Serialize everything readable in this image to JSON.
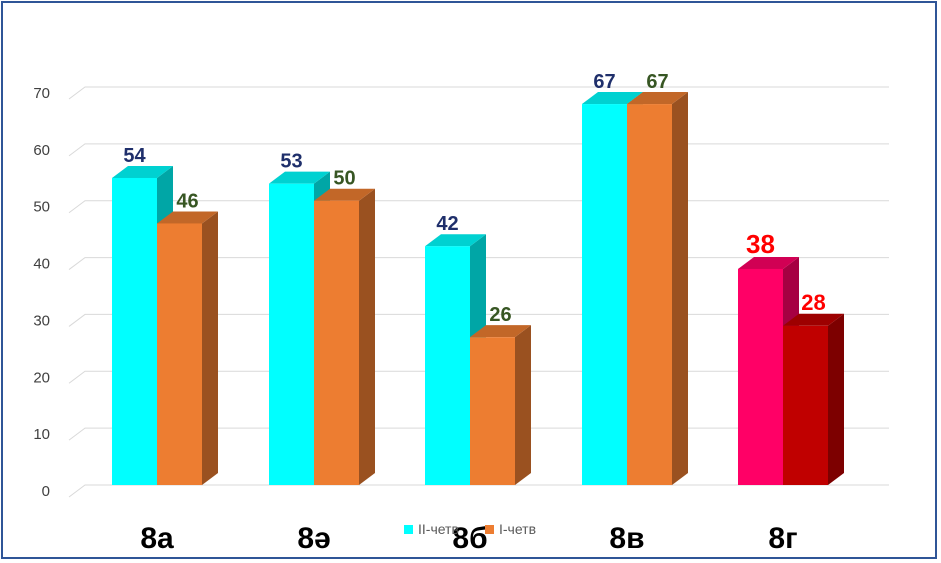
{
  "chart_data": {
    "type": "bar",
    "title": "",
    "xlabel": "",
    "ylabel": "",
    "categories": [
      "8а",
      "8ә",
      "8б",
      "8в",
      "8г"
    ],
    "ylim": [
      0,
      70
    ],
    "yticks": [
      0,
      10,
      20,
      30,
      40,
      50,
      60,
      70
    ],
    "series": [
      {
        "name": "II-четв",
        "values": [
          54,
          53,
          42,
          67,
          38
        ],
        "color": "#00ffff",
        "label_color": "#1f2f6b",
        "point_colors": {
          "4": "#ff0066"
        },
        "point_label_colors": {
          "4": "#ff0000"
        }
      },
      {
        "name": "I-четв",
        "values": [
          46,
          50,
          26,
          67,
          28
        ],
        "color": "#ed7d31",
        "label_color": "#375623",
        "point_colors": {
          "4": "#c00000"
        },
        "point_label_colors": {
          "4": "#ff0000"
        }
      }
    ],
    "grid": true,
    "legend": "bottom-center",
    "three_d": true
  }
}
